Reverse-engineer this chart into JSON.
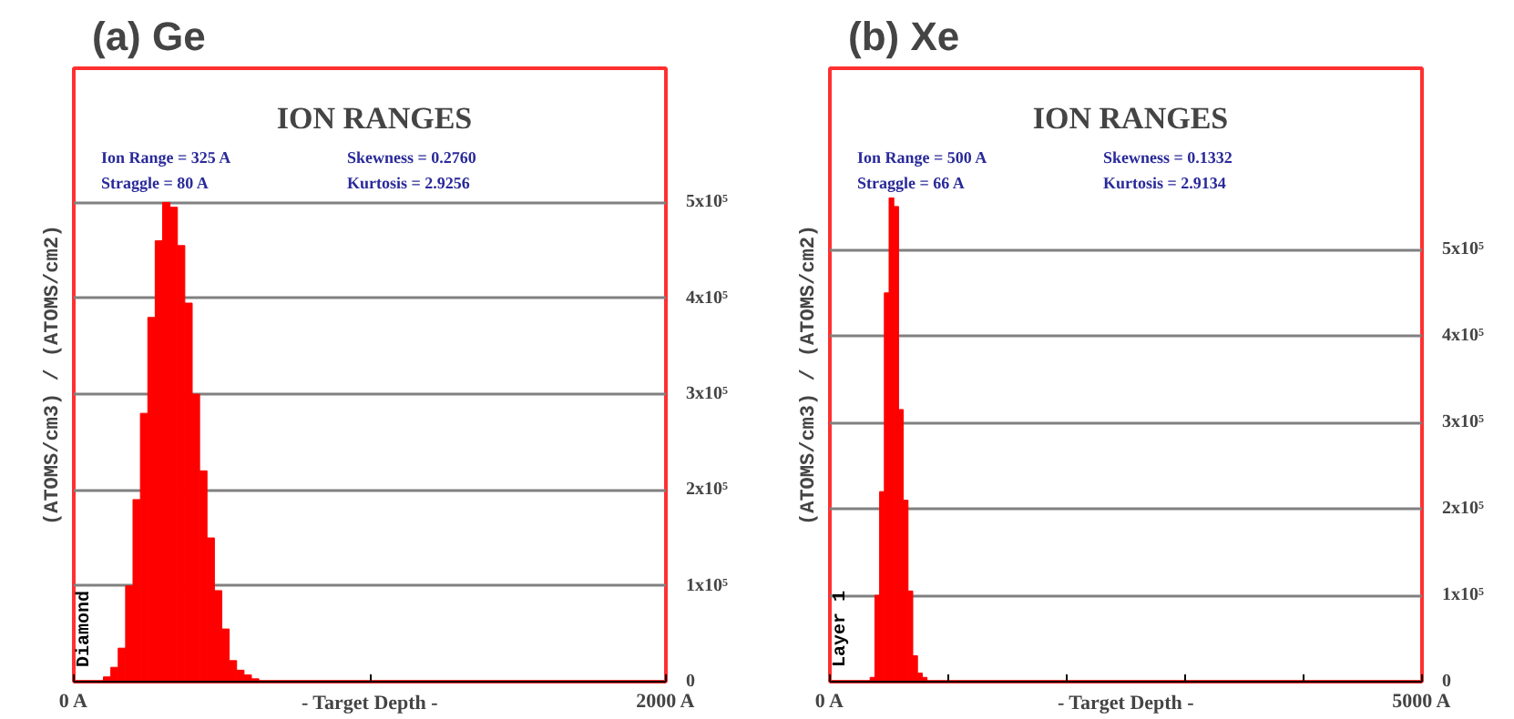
{
  "chart_data": [
    {
      "type": "histogram",
      "title": "(a) Ge",
      "subtitle": "ION RANGES",
      "xlabel": "- Target Depth -",
      "ylabel": "(ATOMS/cm3) / (ATOMS/cm2)",
      "bins": [
        100,
        125,
        150,
        175,
        200,
        225,
        250,
        275,
        300,
        325,
        350,
        375,
        400,
        425,
        450,
        475,
        500,
        525,
        550,
        575,
        600,
        625
      ],
      "values": [
        5000,
        15000,
        35000,
        100000,
        190000,
        280000,
        380000,
        460000,
        500000,
        495000,
        455000,
        395000,
        300000,
        220000,
        150000,
        95000,
        55000,
        22000,
        12000,
        7000,
        3000
      ],
      "color": "#ff0000",
      "xlim": [
        0,
        2000
      ],
      "xticks": [
        {
          "value": 0,
          "label": "0 A"
        },
        {
          "value": 1000,
          "label": null
        },
        {
          "value": 2000,
          "label": "2000 A"
        }
      ],
      "ylim": [
        0,
        640000
      ],
      "yticks": [
        {
          "value": 0,
          "label": "0"
        },
        {
          "value": 100000,
          "label": "1x10⁵"
        },
        {
          "value": 200000,
          "label": "2x10⁵"
        },
        {
          "value": 300000,
          "label": "3x10⁵"
        },
        {
          "value": 400000,
          "label": "4x10⁵"
        },
        {
          "value": 500000,
          "label": "5x10⁵"
        }
      ],
      "grid": "y",
      "annotations": [
        "Ion Range  =  325 A",
        "Straggle  =  80 A",
        "Skewness  = 0.2760",
        "Kurtosis  = 2.9256",
        "Diamond"
      ]
    },
    {
      "type": "histogram",
      "title": "(b) Xe",
      "subtitle": "ION RANGES",
      "xlabel": "- Target Depth -",
      "ylabel": "(ATOMS/cm3) / (ATOMS/cm2)",
      "bins": [
        340,
        380,
        420,
        460,
        500,
        540,
        580,
        620,
        660,
        700,
        740,
        780,
        820
      ],
      "values": [
        5000,
        100000,
        220000,
        450000,
        560000,
        550000,
        315000,
        210000,
        105000,
        30000,
        10000,
        5000
      ],
      "color": "#ff0000",
      "xlim": [
        0,
        5000
      ],
      "xticks": [
        {
          "value": 0,
          "label": "0 A"
        },
        {
          "value": 1000,
          "label": null
        },
        {
          "value": 2000,
          "label": null
        },
        {
          "value": 3000,
          "label": null
        },
        {
          "value": 4000,
          "label": null
        },
        {
          "value": 5000,
          "label": "5000 A"
        }
      ],
      "ylim": [
        0,
        710000
      ],
      "yticks": [
        {
          "value": 0,
          "label": "0"
        },
        {
          "value": 100000,
          "label": "1x10⁵"
        },
        {
          "value": 200000,
          "label": "2x10⁵"
        },
        {
          "value": 300000,
          "label": "3x10⁵"
        },
        {
          "value": 400000,
          "label": "4x10⁵"
        },
        {
          "value": 500000,
          "label": "5x10⁵"
        }
      ],
      "grid": "y",
      "annotations": [
        "Ion Range  =  500 A",
        "Straggle  =  66 A",
        "Skewness  = 0.1332",
        "Kurtosis  = 2.9134",
        "Layer 1"
      ]
    }
  ]
}
